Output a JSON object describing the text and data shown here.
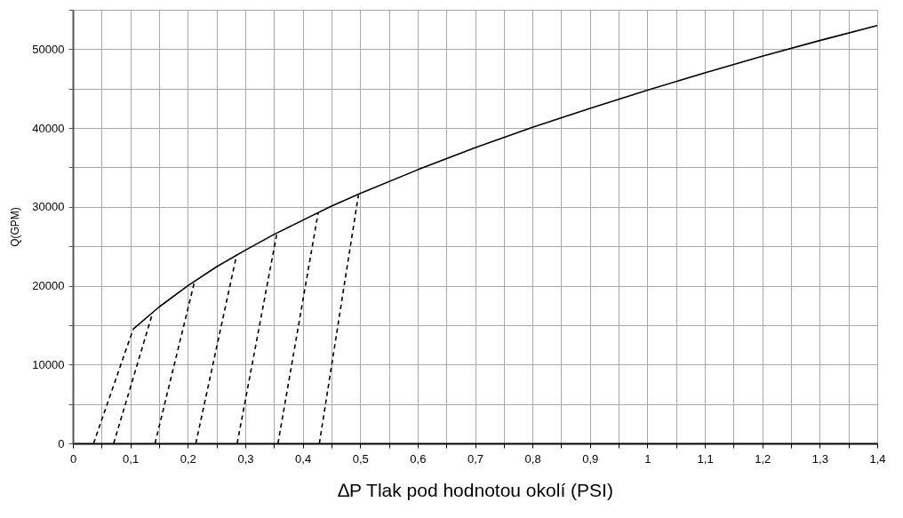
{
  "chart_data": {
    "type": "line",
    "xlabel": "∆P Tlak pod hodnotou okolí (PSI)",
    "ylabel": "Q(GPM)",
    "xlim": [
      0,
      1.4
    ],
    "ylim": [
      0,
      55000
    ],
    "xticks": [
      0,
      {
        "value": 0.05,
        "label": null
      },
      {
        "value": 0.1,
        "label": "0,1"
      },
      {
        "value": 0.15,
        "label": null
      },
      {
        "value": 0.2,
        "label": "0,2"
      },
      {
        "value": 0.25,
        "label": null
      },
      {
        "value": 0.3,
        "label": "0,3"
      },
      {
        "value": 0.35,
        "label": null
      },
      {
        "value": 0.4,
        "label": "0,4"
      },
      {
        "value": 0.45,
        "label": null
      },
      {
        "value": 0.5,
        "label": "0,5"
      },
      {
        "value": 0.55,
        "label": null
      },
      {
        "value": 0.6,
        "label": "0,6"
      },
      {
        "value": 0.65,
        "label": null
      },
      {
        "value": 0.7,
        "label": "0,7"
      },
      {
        "value": 0.75,
        "label": null
      },
      {
        "value": 0.8,
        "label": "0,8"
      },
      {
        "value": 0.85,
        "label": null
      },
      {
        "value": 0.9,
        "label": "0,9"
      },
      {
        "value": 0.95,
        "label": null
      },
      1,
      {
        "value": 1.05,
        "label": null
      },
      {
        "value": 1.1,
        "label": "1,1"
      },
      {
        "value": 1.15,
        "label": null
      },
      {
        "value": 1.2,
        "label": "1,2"
      },
      {
        "value": 1.25,
        "label": null
      },
      {
        "value": 1.3,
        "label": "1,3"
      },
      {
        "value": 1.35,
        "label": null
      },
      {
        "value": 1.4,
        "label": "1,4"
      }
    ],
    "yticks": [
      0,
      {
        "value": 5000,
        "label": null
      },
      10000,
      {
        "value": 15000,
        "label": null
      },
      20000,
      {
        "value": 25000,
        "label": null
      },
      30000,
      {
        "value": 35000,
        "label": null
      },
      40000,
      {
        "value": 45000,
        "label": null
      },
      50000,
      {
        "value": 55000,
        "label": null
      }
    ],
    "grid": true,
    "series": [
      {
        "color": "#000000",
        "line_style": "solid",
        "x": [
          0.105,
          0.15,
          0.2,
          0.25,
          0.3,
          0.35,
          0.4,
          0.45,
          0.5,
          0.6,
          0.7,
          0.8,
          0.9,
          1,
          1.1,
          1.2,
          1.3,
          1.4
        ],
        "values": [
          14500,
          17300,
          20000,
          22400,
          24500,
          26500,
          28300,
          30100,
          31700,
          34700,
          37500,
          40100,
          42500,
          44800,
          47000,
          49100,
          51100,
          53000
        ]
      },
      {
        "color": "#000000",
        "line_style": "dashed",
        "x": [
          0.036,
          0.105
        ],
        "values": [
          0,
          14500
        ]
      },
      {
        "color": "#000000",
        "line_style": "dashed",
        "x": [
          0.071,
          0.139
        ],
        "values": [
          0,
          16600
        ]
      },
      {
        "color": "#000000",
        "line_style": "dashed",
        "x": [
          0.143,
          0.212
        ],
        "values": [
          0,
          20600
        ]
      },
      {
        "color": "#000000",
        "line_style": "dashed",
        "x": [
          0.214,
          0.285
        ],
        "values": [
          0,
          23900
        ]
      },
      {
        "color": "#000000",
        "line_style": "dashed",
        "x": [
          0.286,
          0.355
        ],
        "values": [
          0,
          26600
        ]
      },
      {
        "color": "#000000",
        "line_style": "dashed",
        "x": [
          0.357,
          0.427
        ],
        "values": [
          0,
          29300
        ]
      },
      {
        "color": "#000000",
        "line_style": "dashed",
        "x": [
          0.429,
          0.497
        ],
        "values": [
          0,
          31500
        ]
      }
    ]
  }
}
